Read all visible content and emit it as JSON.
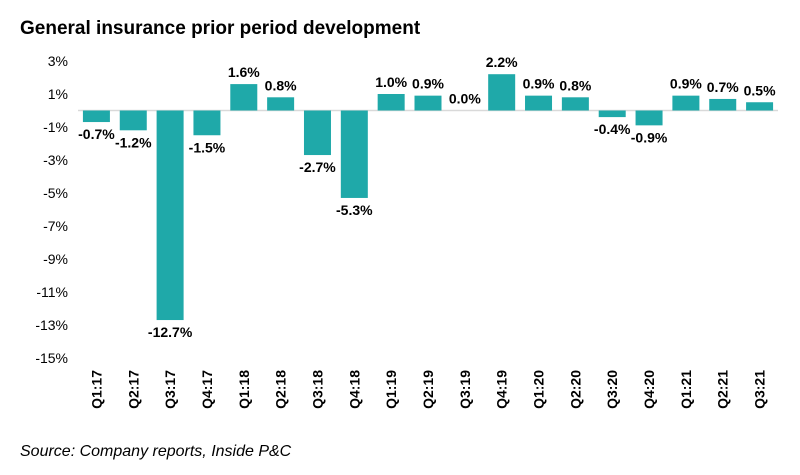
{
  "title": "General insurance prior period development",
  "source": "Source: Company reports, Inside P&C",
  "colors": {
    "bar": "#1fa9a9",
    "axis": "#d9d9d9"
  },
  "chart_data": {
    "type": "bar",
    "title": "General insurance prior period development",
    "xlabel": "",
    "ylabel": "",
    "ylim": [
      -15,
      3
    ],
    "yticks": [
      3,
      1,
      -1,
      -3,
      -5,
      -7,
      -9,
      -11,
      -13,
      -15
    ],
    "ytick_labels": [
      "3%",
      "1%",
      "-1%",
      "-3%",
      "-5%",
      "-7%",
      "-9%",
      "-11%",
      "-13%",
      "-15%"
    ],
    "categories": [
      "Q1:17",
      "Q2:17",
      "Q3:17",
      "Q4:17",
      "Q1:18",
      "Q2:18",
      "Q3:18",
      "Q4:18",
      "Q1:19",
      "Q2:19",
      "Q3:19",
      "Q4:19",
      "Q1:20",
      "Q2:20",
      "Q3:20",
      "Q4:20",
      "Q1:21",
      "Q2:21",
      "Q3:21"
    ],
    "values": [
      -0.7,
      -1.2,
      -12.7,
      -1.5,
      1.6,
      0.8,
      -2.7,
      -5.3,
      1.0,
      0.9,
      0.0,
      2.2,
      0.9,
      0.8,
      -0.4,
      -0.9,
      0.9,
      0.7,
      0.5
    ],
    "data_labels": [
      "-0.7%",
      "-1.2%",
      "-12.7%",
      "-1.5%",
      "1.6%",
      "0.8%",
      "-2.7%",
      "-5.3%",
      "1.0%",
      "0.9%",
      "0.0%",
      "2.2%",
      "0.9%",
      "0.8%",
      "-0.4%",
      "-0.9%",
      "0.9%",
      "0.7%",
      "0.5%"
    ],
    "grid": false,
    "legend": "none"
  }
}
